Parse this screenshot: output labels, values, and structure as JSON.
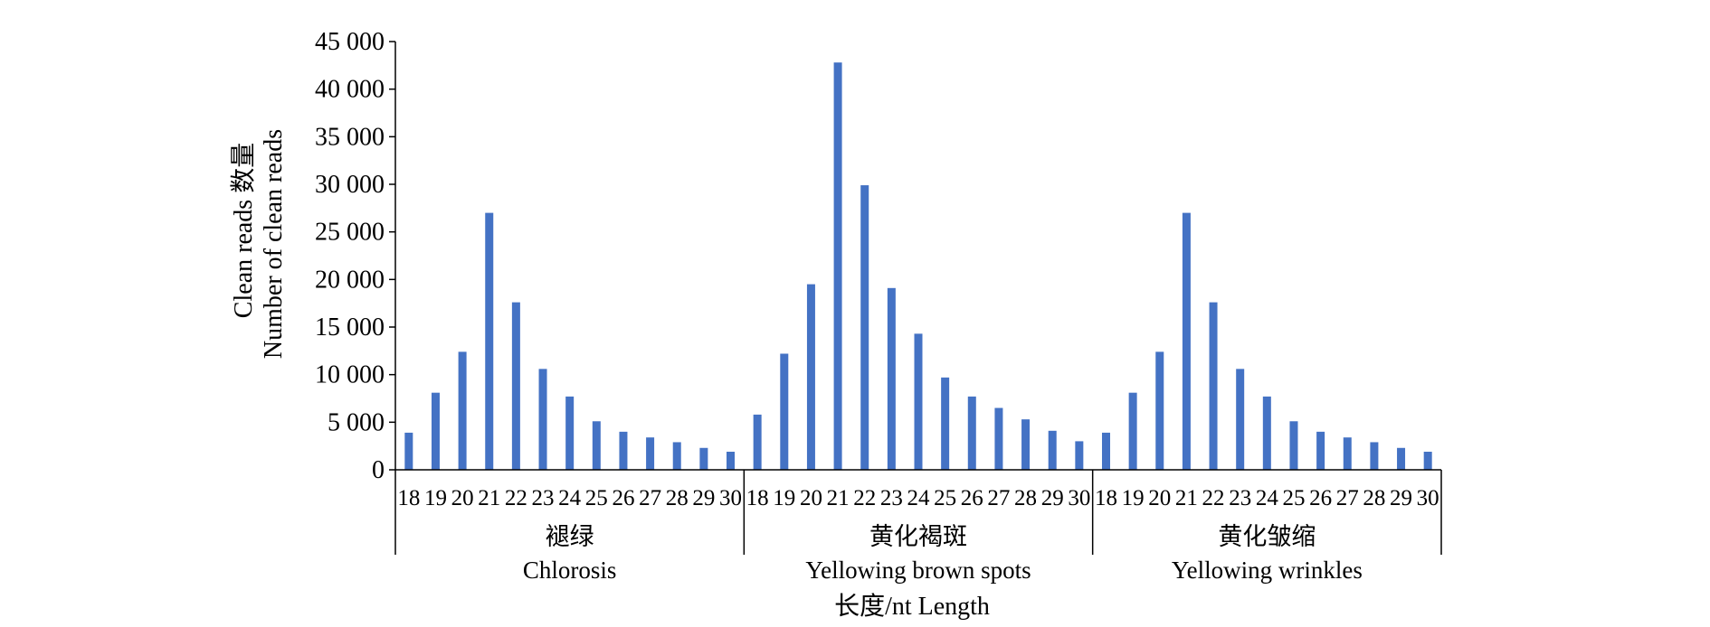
{
  "colors": {
    "bar": "#4472C4",
    "axis": "#000000",
    "background": "#ffffff"
  },
  "chart_data": {
    "type": "bar",
    "ylabel_line1": "Clean reads 数量",
    "ylabel_line2": "Number of clean reads",
    "xlabel": "长度/nt Length",
    "ylim": [
      0,
      45000
    ],
    "yticks": [
      0,
      5000,
      10000,
      15000,
      20000,
      25000,
      30000,
      35000,
      40000,
      45000
    ],
    "ytick_labels": [
      "0",
      "5 000",
      "10 000",
      "15 000",
      "20 000",
      "25 000",
      "30 000",
      "35 000",
      "40 000",
      "45 000"
    ],
    "categories": [
      "18",
      "19",
      "20",
      "21",
      "22",
      "23",
      "24",
      "25",
      "26",
      "27",
      "28",
      "29",
      "30"
    ],
    "groups": [
      {
        "label_cn": "褪绿",
        "label_en": "Chlorosis",
        "values": [
          3900,
          8100,
          12400,
          27000,
          17600,
          10600,
          7700,
          5100,
          4000,
          3400,
          2900,
          2300,
          1900
        ]
      },
      {
        "label_cn": "黄化褐斑",
        "label_en": "Yellowing brown spots",
        "values": [
          5800,
          12200,
          19500,
          42800,
          29900,
          19100,
          14300,
          9700,
          7700,
          6500,
          5300,
          4100,
          3000
        ]
      },
      {
        "label_cn": "黄化皱缩",
        "label_en": "Yellowing wrinkles",
        "values": [
          3900,
          8100,
          12400,
          27000,
          17600,
          10600,
          7700,
          5100,
          4000,
          3400,
          2900,
          2300,
          1900
        ]
      }
    ]
  }
}
